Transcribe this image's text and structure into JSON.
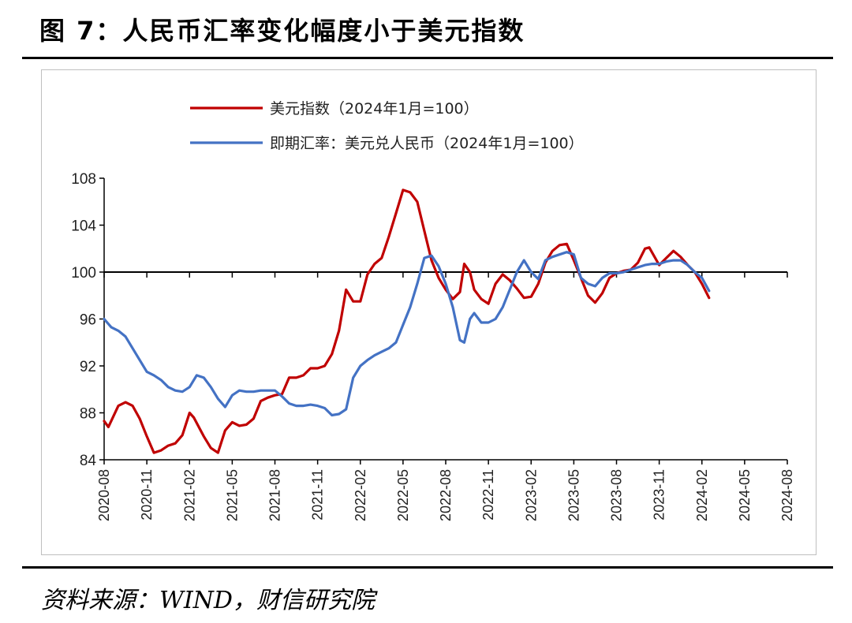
{
  "figure": {
    "title": "图 7：人民币汇率变化幅度小于美元指数",
    "source": "资料来源：WIND，财信研究院"
  },
  "colors": {
    "usd_index": "#c00000",
    "fx_spot": "#4472c4",
    "axis": "#000000"
  },
  "chart_data": {
    "type": "line",
    "title": "",
    "xlabel": "",
    "ylabel": "",
    "ylim": [
      84,
      108
    ],
    "yticks": [
      "84",
      "88",
      "92",
      "96",
      "100",
      "104",
      "108"
    ],
    "reference_line": 100,
    "legend_position": "top-left",
    "x_tick_labels": [
      "2020-08",
      "2020-11",
      "2021-02",
      "2021-05",
      "2021-08",
      "2021-11",
      "2022-02",
      "2022-05",
      "2022-08",
      "2022-11",
      "2023-02",
      "2023-05",
      "2023-08",
      "2023-11",
      "2024-02",
      "2024-05",
      "2024-08"
    ],
    "x_range": [
      0,
      48
    ],
    "series": [
      {
        "name": "美元指数（2024年1月=100）",
        "color_key": "usd_index",
        "points": [
          [
            0,
            87.3
          ],
          [
            0.3,
            86.8
          ],
          [
            1,
            88.6
          ],
          [
            1.5,
            88.9
          ],
          [
            2,
            88.6
          ],
          [
            2.5,
            87.5
          ],
          [
            3,
            86
          ],
          [
            3.5,
            84.6
          ],
          [
            4,
            84.8
          ],
          [
            4.5,
            85.2
          ],
          [
            5,
            85.4
          ],
          [
            5.5,
            86.1
          ],
          [
            6,
            88
          ],
          [
            6.3,
            87.6
          ],
          [
            7,
            86
          ],
          [
            7.5,
            85
          ],
          [
            8,
            84.6
          ],
          [
            8.5,
            86.5
          ],
          [
            9,
            87.2
          ],
          [
            9.5,
            86.9
          ],
          [
            10,
            87
          ],
          [
            10.5,
            87.5
          ],
          [
            11,
            89
          ],
          [
            11.5,
            89.3
          ],
          [
            12,
            89.5
          ],
          [
            12.5,
            89.6
          ],
          [
            13,
            91
          ],
          [
            13.5,
            91
          ],
          [
            14,
            91.2
          ],
          [
            14.5,
            91.8
          ],
          [
            15,
            91.8
          ],
          [
            15.5,
            92
          ],
          [
            16,
            93
          ],
          [
            16.5,
            95
          ],
          [
            17,
            98.5
          ],
          [
            17.5,
            97.5
          ],
          [
            18,
            97.5
          ],
          [
            18.5,
            99.8
          ],
          [
            19,
            100.7
          ],
          [
            19.5,
            101.2
          ],
          [
            20,
            103
          ],
          [
            20.5,
            105
          ],
          [
            21,
            107
          ],
          [
            21.5,
            106.8
          ],
          [
            22,
            106
          ],
          [
            22.5,
            103.5
          ],
          [
            23,
            101
          ],
          [
            23.5,
            99.5
          ],
          [
            24,
            98.5
          ],
          [
            24.5,
            97.7
          ],
          [
            25,
            98.3
          ],
          [
            25.3,
            100.7
          ],
          [
            25.7,
            100
          ],
          [
            26,
            98.5
          ],
          [
            26.5,
            97.7
          ],
          [
            27,
            97.3
          ],
          [
            27.5,
            99
          ],
          [
            28,
            99.8
          ],
          [
            28.5,
            99.3
          ],
          [
            29,
            98.6
          ],
          [
            29.5,
            97.8
          ],
          [
            30,
            97.9
          ],
          [
            30.5,
            99
          ],
          [
            31,
            100.8
          ],
          [
            31.5,
            101.8
          ],
          [
            32,
            102.3
          ],
          [
            32.5,
            102.4
          ],
          [
            33,
            101
          ],
          [
            33.5,
            99.5
          ],
          [
            34,
            98
          ],
          [
            34.5,
            97.4
          ],
          [
            35,
            98.2
          ],
          [
            35.5,
            99.5
          ],
          [
            36,
            99.9
          ],
          [
            36.5,
            100.1
          ],
          [
            37,
            100.2
          ],
          [
            37.5,
            100.8
          ],
          [
            38,
            102
          ],
          [
            38.3,
            102.1
          ],
          [
            39,
            100.6
          ],
          [
            39.5,
            101.2
          ],
          [
            40,
            101.8
          ],
          [
            40.5,
            101.3
          ],
          [
            41,
            100.6
          ],
          [
            41.5,
            100
          ],
          [
            42,
            99
          ],
          [
            42.5,
            97.8
          ]
        ]
      },
      {
        "name": "即期汇率：美元兑人民币（2024年1月=100）",
        "color_key": "fx_spot",
        "points": [
          [
            0,
            96
          ],
          [
            0.5,
            95.3
          ],
          [
            1,
            95
          ],
          [
            1.5,
            94.5
          ],
          [
            2,
            93.5
          ],
          [
            2.5,
            92.5
          ],
          [
            3,
            91.5
          ],
          [
            3.5,
            91.2
          ],
          [
            4,
            90.8
          ],
          [
            4.5,
            90.2
          ],
          [
            5,
            89.9
          ],
          [
            5.5,
            89.8
          ],
          [
            6,
            90.2
          ],
          [
            6.5,
            91.2
          ],
          [
            7,
            91
          ],
          [
            7.5,
            90.2
          ],
          [
            8,
            89.2
          ],
          [
            8.5,
            88.5
          ],
          [
            9,
            89.5
          ],
          [
            9.5,
            89.9
          ],
          [
            10,
            89.8
          ],
          [
            10.5,
            89.8
          ],
          [
            11,
            89.9
          ],
          [
            11.5,
            89.9
          ],
          [
            12,
            89.9
          ],
          [
            12.5,
            89.4
          ],
          [
            13,
            88.8
          ],
          [
            13.5,
            88.6
          ],
          [
            14,
            88.6
          ],
          [
            14.5,
            88.7
          ],
          [
            15,
            88.6
          ],
          [
            15.5,
            88.4
          ],
          [
            16,
            87.8
          ],
          [
            16.5,
            87.9
          ],
          [
            17,
            88.3
          ],
          [
            17.5,
            91
          ],
          [
            18,
            92
          ],
          [
            18.5,
            92.5
          ],
          [
            19,
            92.9
          ],
          [
            19.5,
            93.2
          ],
          [
            20,
            93.5
          ],
          [
            20.5,
            94
          ],
          [
            21,
            95.5
          ],
          [
            21.5,
            97
          ],
          [
            22,
            99
          ],
          [
            22.5,
            101.2
          ],
          [
            23,
            101.4
          ],
          [
            23.5,
            100.5
          ],
          [
            24,
            99
          ],
          [
            24.5,
            97
          ],
          [
            25,
            94.2
          ],
          [
            25.3,
            94
          ],
          [
            25.7,
            96
          ],
          [
            26,
            96.5
          ],
          [
            26.5,
            95.7
          ],
          [
            27,
            95.7
          ],
          [
            27.5,
            96
          ],
          [
            28,
            97
          ],
          [
            28.5,
            98.5
          ],
          [
            29,
            100
          ],
          [
            29.5,
            101
          ],
          [
            30,
            100
          ],
          [
            30.5,
            99.4
          ],
          [
            31,
            101
          ],
          [
            31.5,
            101.3
          ],
          [
            32,
            101.5
          ],
          [
            32.5,
            101.7
          ],
          [
            33,
            101.5
          ],
          [
            33.5,
            99.5
          ],
          [
            34,
            99
          ],
          [
            34.5,
            98.8
          ],
          [
            35,
            99.5
          ],
          [
            35.5,
            99.9
          ],
          [
            36,
            99.9
          ],
          [
            36.5,
            100
          ],
          [
            37,
            100.2
          ],
          [
            37.5,
            100.4
          ],
          [
            38,
            100.6
          ],
          [
            38.5,
            100.7
          ],
          [
            39,
            100.7
          ],
          [
            39.5,
            100.9
          ],
          [
            40,
            101
          ],
          [
            40.5,
            101
          ],
          [
            41,
            100.6
          ],
          [
            41.5,
            100
          ],
          [
            42,
            99.5
          ],
          [
            42.5,
            98.4
          ]
        ]
      }
    ]
  }
}
